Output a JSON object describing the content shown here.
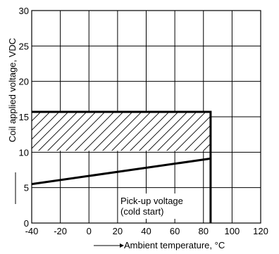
{
  "chart_data": {
    "type": "line",
    "title": "",
    "xlabel": "Ambient temperature, °C",
    "ylabel": "Coil applied voltage, VDC",
    "xlim": [
      -40,
      120
    ],
    "ylim": [
      0,
      30
    ],
    "x_ticks": [
      "-40",
      "-20",
      "0",
      "20",
      "40",
      "60",
      "80",
      "100",
      "120"
    ],
    "y_ticks": [
      "0",
      "5",
      "10",
      "15",
      "20",
      "25",
      "30"
    ],
    "grid": true,
    "operating_region": {
      "x_min": -40,
      "x_max": 85,
      "y_min": 0,
      "y_max": 15.7,
      "hatched_band": [
        10.2,
        15.7
      ]
    },
    "series": [
      {
        "x": [
          -40,
          85
        ],
        "values": [
          5.5,
          9.1
        ]
      }
    ],
    "annotations": [
      {
        "line1": "Pick-up voltage",
        "line2": "(cold start)"
      }
    ]
  }
}
